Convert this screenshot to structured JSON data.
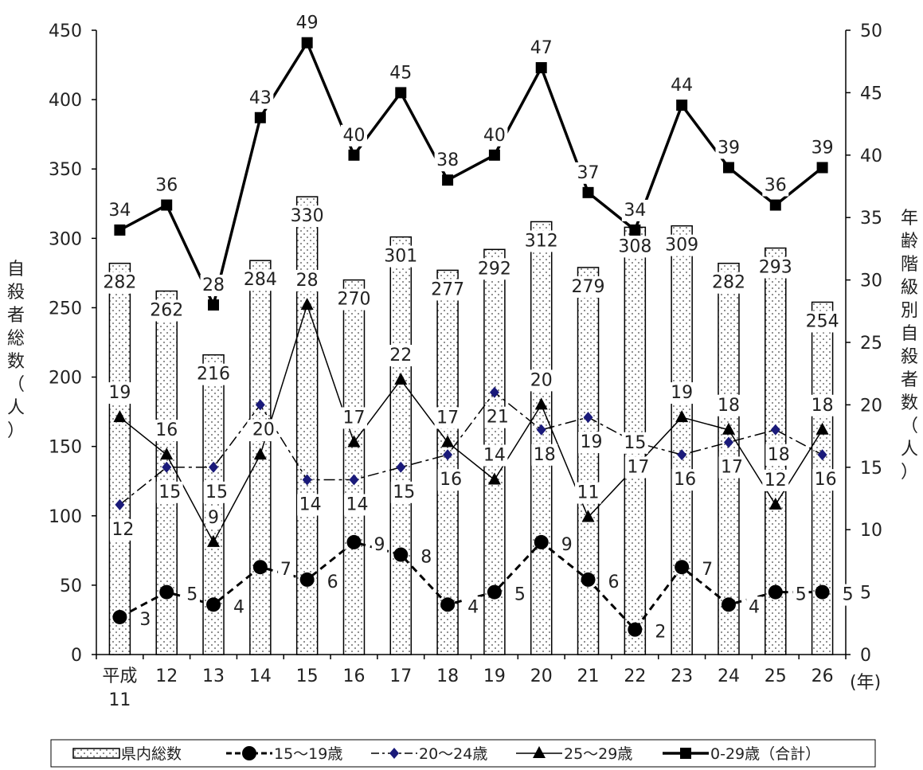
{
  "chart_data": {
    "type": "bar+line",
    "categories": [
      "平成\n11",
      "12",
      "13",
      "14",
      "15",
      "16",
      "17",
      "18",
      "19",
      "20",
      "21",
      "22",
      "23",
      "24",
      "25",
      "26"
    ],
    "x_unit": "(年)",
    "y_left": {
      "label": "自殺者総数（人）",
      "range": [
        0,
        450
      ],
      "ticks": [
        0,
        50,
        100,
        150,
        200,
        250,
        300,
        350,
        400,
        450
      ]
    },
    "y_right": {
      "label": "年齢階級別自殺者数（人）",
      "range": [
        0,
        50
      ],
      "ticks": [
        0,
        5,
        10,
        15,
        20,
        25,
        30,
        35,
        40,
        45,
        50
      ]
    },
    "bars": {
      "name": "県内総数",
      "axis": "left",
      "values": [
        282,
        262,
        216,
        284,
        330,
        270,
        301,
        277,
        292,
        312,
        279,
        308,
        309,
        282,
        293,
        254
      ]
    },
    "series": [
      {
        "name": "15〜19歳",
        "axis": "right",
        "style": "dashed-circle",
        "values": [
          3,
          5,
          4,
          7,
          6,
          9,
          8,
          4,
          5,
          9,
          6,
          2,
          7,
          4,
          5,
          5
        ]
      },
      {
        "name": "20〜24歳",
        "axis": "right",
        "style": "dashdot-diamond",
        "values": [
          12,
          15,
          15,
          20,
          14,
          14,
          15,
          16,
          21,
          18,
          19,
          17,
          16,
          17,
          18,
          16
        ]
      },
      {
        "name": "25〜29歳",
        "axis": "right",
        "style": "solid-triangle",
        "values": [
          19,
          16,
          9,
          16,
          28,
          17,
          22,
          17,
          14,
          20,
          11,
          15,
          19,
          18,
          12,
          18
        ]
      },
      {
        "name": "0-29歳（合計）",
        "axis": "right",
        "style": "bold-square",
        "values": [
          34,
          36,
          28,
          43,
          49,
          40,
          45,
          38,
          40,
          47,
          37,
          34,
          44,
          39,
          36,
          39
        ]
      }
    ],
    "legend_position": "bottom",
    "grid": false
  }
}
